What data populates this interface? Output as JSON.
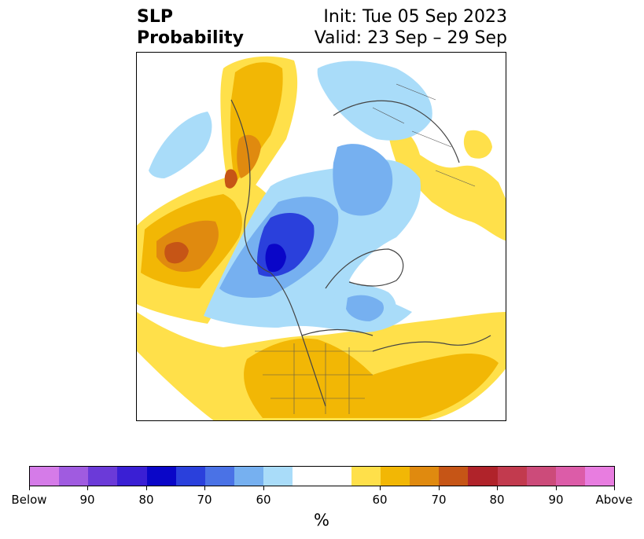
{
  "title": {
    "left_line1": "SLP",
    "left_line2": "Probability",
    "right_line1": "Init: Tue 05 Sep 2023",
    "right_line2": "Valid: 23 Sep – 29 Sep"
  },
  "colorbar": {
    "label": "%",
    "colors": [
      "#d57be8",
      "#a05be0",
      "#6b3ad8",
      "#3a1fd4",
      "#0a06c8",
      "#2a40dc",
      "#4a72e6",
      "#76b0f0",
      "#a9dcf9",
      "#ffffff",
      "#ffffff",
      "#ffe04a",
      "#f2b705",
      "#e08a0f",
      "#c65516",
      "#b0232a",
      "#c23a4e",
      "#cc4b7a",
      "#dc5ca8",
      "#e87de0"
    ],
    "ticks": [
      "Below",
      "90",
      "80",
      "70",
      "60",
      "60",
      "70",
      "80",
      "90",
      "Above"
    ]
  },
  "map": {
    "projection": "north-polar-stereographic",
    "fill_colors": {
      "below_60": "#a9dcf9",
      "below_70": "#76b0f0",
      "below_80": "#2a40dc",
      "below_90": "#0a06c8",
      "above_60": "#ffe04a",
      "above_70": "#f2b705",
      "above_80": "#e08a0f",
      "above_90": "#c65516"
    }
  }
}
